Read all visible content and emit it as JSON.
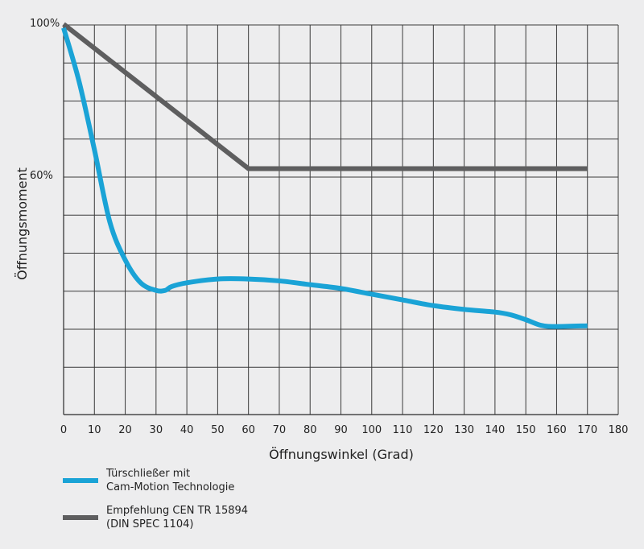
{
  "chart_data": {
    "type": "line",
    "xlabel": "Öffnungswinkel (Grad)",
    "ylabel": "Öffnungsmoment",
    "xlim": [
      0,
      180
    ],
    "ylim": [
      0,
      100
    ],
    "x_ticks": [
      0,
      10,
      20,
      30,
      40,
      50,
      60,
      70,
      80,
      90,
      100,
      110,
      120,
      130,
      140,
      150,
      160,
      170,
      180
    ],
    "y_tick_labels": [
      {
        "value": 100,
        "label": "100%"
      },
      {
        "value": 60,
        "label": "60%"
      }
    ],
    "grid": true,
    "legend": "bottom-left",
    "series": [
      {
        "name": "Türschließer mit\nCam-Motion Technologie",
        "color": "#1aa3d6",
        "x": [
          0,
          5,
          10,
          15,
          20,
          25,
          30,
          33,
          35,
          40,
          50,
          60,
          70,
          80,
          90,
          100,
          110,
          120,
          130,
          140,
          145,
          150,
          155,
          160,
          170
        ],
        "y": [
          99,
          85,
          67,
          48,
          38,
          32,
          30,
          30,
          31,
          32,
          33,
          33,
          32.5,
          31.5,
          30.5,
          29,
          27.5,
          26,
          25,
          24.3,
          23.6,
          22.3,
          20.8,
          20.5,
          20.7
        ]
      },
      {
        "name": "Empfehlung CEN TR 15894\n(DIN SPEC 1104)",
        "color": "#5e5e5f",
        "x": [
          0,
          60,
          170
        ],
        "y": [
          100,
          62,
          62
        ]
      }
    ]
  }
}
